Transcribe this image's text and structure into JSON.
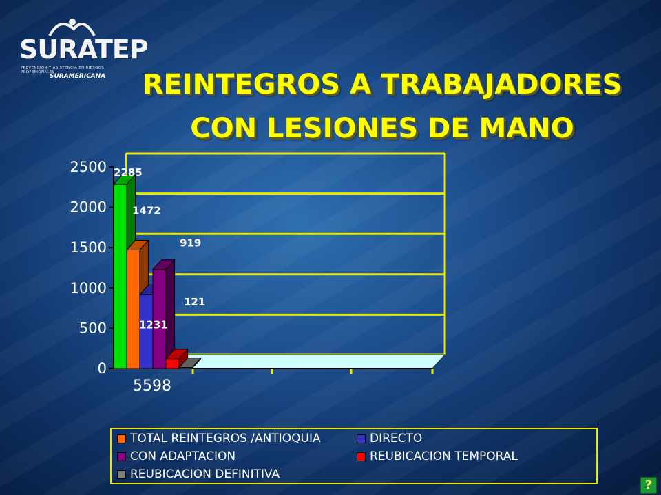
{
  "slide": {
    "title_line1": "REINTEGROS A TRABAJADORES",
    "title_line2": "CON LESIONES DE MANO",
    "logo": {
      "name": "SURATEP",
      "tagline": "PREVENCION Y ASISTENCIA EN RIESGOS PROFESIONALES",
      "brand": "SURAMERICANA"
    },
    "help_button": "?"
  },
  "colors": {
    "title": "#ffff00",
    "axis_and_grid": "#e8e800",
    "floor": "#ccffff"
  },
  "chart_data": {
    "type": "bar",
    "categories": [
      "5598"
    ],
    "ylim": [
      0,
      2500
    ],
    "yticks": [
      0,
      500,
      1000,
      1500,
      2000,
      2500
    ],
    "grid": true,
    "legend_position": "bottom",
    "series": [
      {
        "name": "TOTAL REINTEGROS /ANTIOQUIA",
        "value": 2285,
        "label": "2285",
        "color": "#00e000"
      },
      {
        "name": "DIRECTO",
        "value": 1472,
        "label": "1472",
        "color": "#ff6600"
      },
      {
        "name": "CON ADAPTACION",
        "value": 919,
        "label": "919",
        "color": "#3333cc"
      },
      {
        "name": "REUBICACION TEMPORAL",
        "value": 1231,
        "label": "1231",
        "color": "#800080"
      },
      {
        "name": "REUBICACION DEFINITIVA",
        "value": 121,
        "label": "121",
        "color": "#ff0000"
      },
      {
        "name": "",
        "value": 12,
        "label": "",
        "color": "#808080"
      }
    ]
  },
  "legend": [
    {
      "label": "TOTAL REINTEGROS /ANTIOQUIA",
      "color": "#ff6600"
    },
    {
      "label": "DIRECTO",
      "color": "#3333cc"
    },
    {
      "label": "CON ADAPTACION",
      "color": "#800080"
    },
    {
      "label": "REUBICACION TEMPORAL",
      "color": "#ff0000"
    },
    {
      "label": "REUBICACION DEFINITIVA",
      "color": "#808080"
    }
  ]
}
